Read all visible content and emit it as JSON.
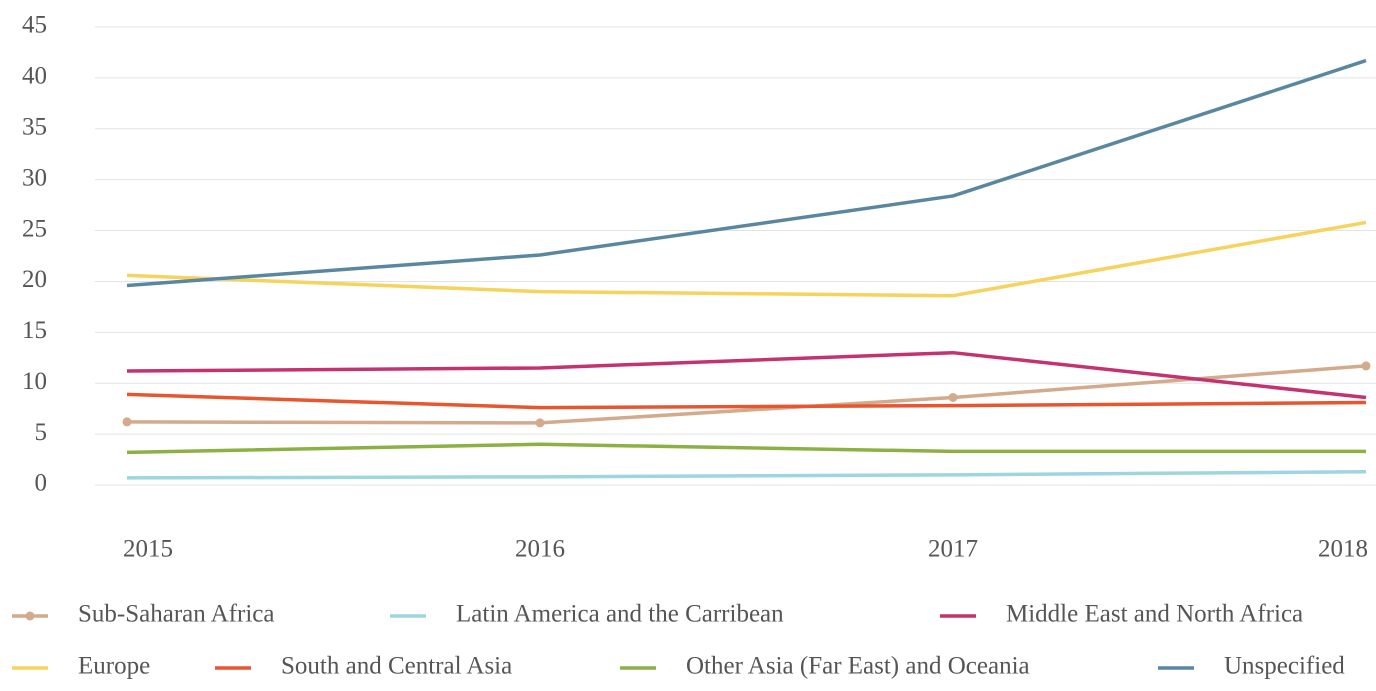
{
  "chart_data": {
    "type": "line",
    "categories": [
      "2015",
      "2016",
      "2017",
      "2018"
    ],
    "series": [
      {
        "name": "Sub-Saharan Africa",
        "color": "#d4aa8c",
        "marker": "circle",
        "values": [
          6.2,
          6.1,
          8.6,
          11.7
        ]
      },
      {
        "name": "Latin America and the Carribean",
        "color": "#9dd6e0",
        "values": [
          0.7,
          0.8,
          1.0,
          1.3
        ]
      },
      {
        "name": "Middle East and North Africa",
        "color": "#c4336f",
        "values": [
          11.2,
          11.5,
          13.0,
          8.6
        ]
      },
      {
        "name": "Europe",
        "color": "#f5d35c",
        "values": [
          20.6,
          19.0,
          18.6,
          25.8
        ]
      },
      {
        "name": "South and Central Asia",
        "color": "#e8552e",
        "values": [
          8.9,
          7.6,
          7.8,
          8.1
        ]
      },
      {
        "name": "Other Asia (Far East) and Oceania",
        "color": "#8db043",
        "values": [
          3.2,
          4.0,
          3.3,
          3.3
        ]
      },
      {
        "name": "Unspecified",
        "color": "#5a87a0",
        "values": [
          19.6,
          22.6,
          28.4,
          41.7
        ]
      }
    ],
    "ylim": [
      0,
      45
    ],
    "yticks": [
      0,
      5,
      10,
      15,
      20,
      25,
      30,
      35,
      40,
      45
    ],
    "grid": true,
    "legend": "bottom"
  }
}
